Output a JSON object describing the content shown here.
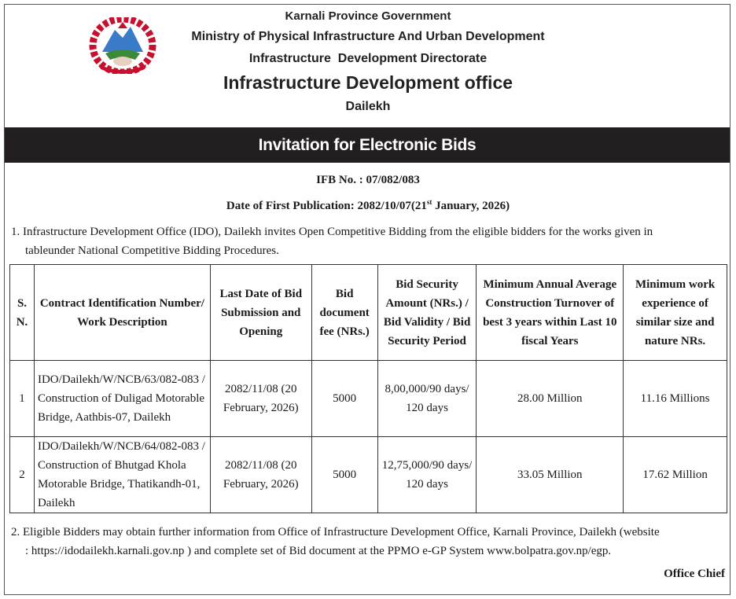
{
  "header": {
    "line1": "Karnali Province Government",
    "line2": "Ministry of Physical Infrastructure And Urban Development",
    "line3": "Infrastructure  Development Directorate",
    "office": "Infrastructure Development office",
    "location": "Dailekh"
  },
  "banner": "Invitation for Electronic Bids",
  "ifb": "IFB No. : 07/082/083",
  "publication": {
    "prefix": "Date of First Publication: 2082/10/07(21",
    "sup": "st",
    "suffix": " January, 2026)"
  },
  "para1": {
    "line1": "1. Infrastructure Development Office (IDO), Dailekh invites Open Competitive Bidding from the eligible bidders for the works given in",
    "line2": "tableunder National Competitive Bidding Procedures."
  },
  "table": {
    "headers": [
      "S. N.",
      "Contract Identification Number/ Work Description",
      "Last Date of Bid Submission and Opening",
      "Bid document fee (NRs.)",
      "Bid Security Amount (NRs.) / Bid Validity / Bid Security Period",
      "Minimum Annual Average Construction Turnover of best 3 years within Last 10 fiscal Years",
      "Minimum work experience of similar size and nature NRs."
    ],
    "rows": [
      {
        "sn": "1",
        "desc": "IDO/Dailekh/W/NCB/63/082-083 / Construction of Duligad Motorable Bridge, Aathbis-07, Dailekh",
        "date": "2082/11/08 (20 February, 2026)",
        "fee": "5000",
        "security": "8,00,000/90 days/ 120 days",
        "turnover": "28.00 Million",
        "experience": "11.16 Millions"
      },
      {
        "sn": "2",
        "desc": "IDO/Dailekh/W/NCB/64/082-083 / Construction of Bhutgad Khola Motorable Bridge, Thatikandh-01, Dailekh",
        "date": "2082/11/08 (20 February, 2026)",
        "fee": "5000",
        "security": "12,75,000/90 days/ 120 days",
        "turnover": "33.05 Million",
        "experience": "17.62 Million"
      }
    ]
  },
  "para2": {
    "line1": "2. Eligible Bidders may obtain further information from Office of Infrastructure Development Office, Karnali  Province, Dailekh (website",
    "line2": ": https://idodailekh.karnali.gov.np ) and complete set of Bid document at the PPMO e-GP System www.bolpatra.gov.np/egp."
  },
  "signature": "Office Chief",
  "colors": {
    "banner": "#231f20",
    "emblem_red": "#c8102e",
    "emblem_blue": "#3a7bc8"
  }
}
